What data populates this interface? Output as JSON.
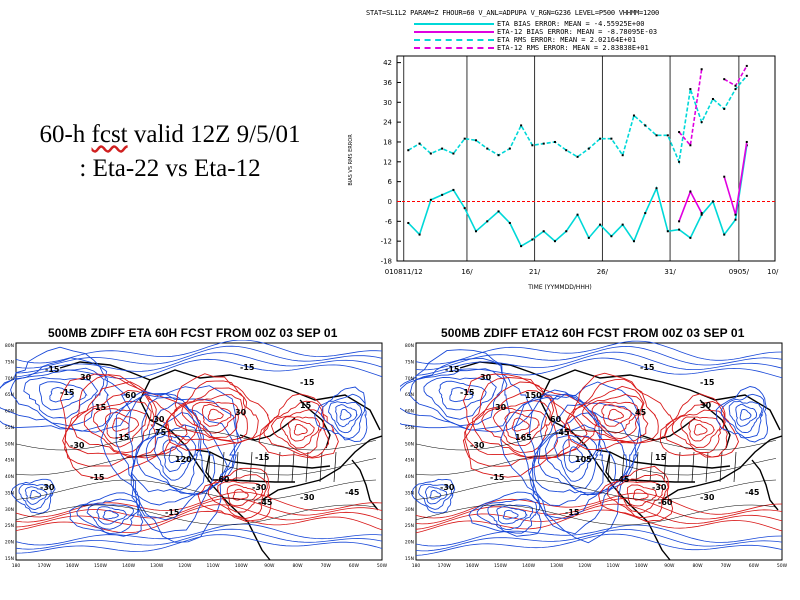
{
  "slide": {
    "title_line1": "60-h fcst valid 12Z 9/5/01",
    "title_line2": ": Eta-22 vs Eta-12",
    "title_word_fcst": "fcst"
  },
  "chart_header": "STAT=SL1L2 PARAM=Z FHOUR=60 V_ANL=ADPUPA V_RGN=G236 LEVEL=P500 VHHMM=1200",
  "chart_data": {
    "type": "line",
    "title": "STAT=SL1L2 PARAM=Z FHOUR=60 V_ANL=ADPUPA V_RGN=G236 LEVEL=P500 VHHMM=1200",
    "xlabel": "TIME (YYMMDD/HHH)",
    "ylabel": "BIAS VS RMS ERROR",
    "ylim": [
      -18,
      44
    ],
    "yticks": [
      -18,
      -12,
      -6,
      0,
      6,
      12,
      18,
      24,
      30,
      36,
      42
    ],
    "xtick_labels": [
      "010811/12",
      "16/",
      "21/",
      "26/",
      "31/",
      "0905/",
      "10/"
    ],
    "legend_entries": [
      "ETA BIAS ERROR: MEAN = -4.55925E+00",
      "ETA-12 BIAS ERROR: MEAN = -8.78095E-03",
      "ETA RMS ERROR: MEAN = 2.02164E+01",
      "ETA-12 RMS ERROR: MEAN = 2.83838E+01"
    ],
    "series": [
      {
        "name": "ETA BIAS ERROR: MEAN = -4.55925E+00",
        "color": "#00d8d8",
        "style": "solid",
        "x": [
          1,
          2,
          3,
          4,
          5,
          6,
          7,
          8,
          9,
          10,
          11,
          12,
          13,
          14,
          15,
          16,
          17,
          18,
          19,
          20,
          21,
          22,
          23,
          24,
          25,
          26,
          27,
          28,
          29,
          30,
          31
        ],
        "y": [
          -6.5,
          -10,
          0.5,
          2,
          3.5,
          -2,
          -9,
          -6,
          -3,
          -6.5,
          -13.5,
          -11.5,
          -9,
          -12,
          -9,
          -4,
          -11,
          -7,
          -10.5,
          -7,
          -12,
          -3.5,
          4,
          -9,
          -8.5,
          -11,
          -4,
          0,
          -10,
          -5.5,
          17
        ]
      },
      {
        "name": "ETA-12 BIAS ERROR: MEAN = -8.78095E-03",
        "color": "#e000e0",
        "style": "solid",
        "x": [
          25,
          26,
          27,
          28,
          29,
          30,
          31
        ],
        "y": [
          -6,
          3,
          -3.5,
          null,
          7.5,
          -4,
          18
        ]
      },
      {
        "name": "ETA RMS ERROR: MEAN = 2.02164E+01",
        "color": "#00d8d8",
        "style": "dashed",
        "x": [
          1,
          2,
          3,
          4,
          5,
          6,
          7,
          8,
          9,
          10,
          11,
          12,
          13,
          14,
          15,
          16,
          17,
          18,
          19,
          20,
          21,
          22,
          23,
          24,
          25,
          26,
          27,
          28,
          29,
          30,
          31
        ],
        "y": [
          15.5,
          17.5,
          14.5,
          16,
          14.5,
          19,
          18.5,
          16,
          14,
          16,
          23,
          17,
          17.5,
          18,
          15.5,
          13.5,
          16,
          19,
          19,
          14,
          26,
          23,
          20,
          20,
          12,
          34,
          24,
          31,
          28,
          34,
          38
        ]
      },
      {
        "name": "ETA-12 RMS ERROR: MEAN = 2.83838E+01",
        "color": "#e000e0",
        "style": "dashed",
        "x": [
          25,
          26,
          27,
          28,
          29,
          30,
          31
        ],
        "y": [
          21,
          17,
          40,
          null,
          37,
          35,
          41
        ]
      }
    ],
    "reference_line": {
      "y": 0,
      "color": "#ff0000",
      "style": "dashed"
    },
    "vertical_day_lines": [
      0.6,
      6.2,
      12.2,
      18.2,
      24.2,
      30.3
    ]
  },
  "maps": {
    "left_title": "500MB ZDIFF ETA 60H FCST FROM 00Z 03 SEP 01",
    "right_title": "500MB ZDIFF ETA12 60H FCST FROM 00Z 03 SEP 01",
    "lat_labels": [
      "80N",
      "75N",
      "70N",
      "65N",
      "60N",
      "55N",
      "50N",
      "45N",
      "40N",
      "35N",
      "30N",
      "25N",
      "20N",
      "15N"
    ],
    "lon_labels": [
      "180",
      "170W",
      "160W",
      "150W",
      "140W",
      "130W",
      "120W",
      "110W",
      "100W",
      "90W",
      "80W",
      "70W",
      "60W",
      "50W"
    ],
    "left_contour_labels": [
      "-15",
      "30",
      "-15",
      "15",
      "60",
      "-30",
      "75",
      "120",
      "-15",
      "-30",
      "-15",
      "-30",
      "-15",
      "-15",
      "30",
      "-15",
      "15",
      "-15",
      "-30",
      "-45",
      "-60",
      "-30",
      "-45"
    ],
    "right_contour_labels": [
      "-15",
      "30",
      "-15",
      "30",
      "150",
      "60",
      "-45",
      "105",
      "165",
      "-30",
      "-15",
      "-30",
      "-15",
      "-15",
      "45",
      "-15",
      "30",
      "15",
      "-30",
      "-60",
      "-45",
      "-30",
      "-45"
    ],
    "colors": {
      "positive": "#d81818",
      "negative": "#1848d8",
      "zero": "#000000"
    }
  }
}
